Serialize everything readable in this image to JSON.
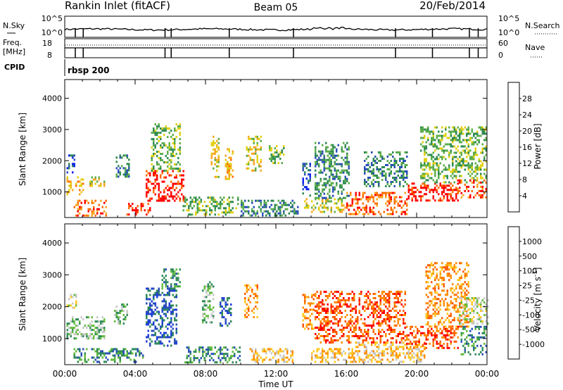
{
  "header": {
    "station": "Rankin Inlet (fitACF)",
    "beam": "Beam 05",
    "date": "20/Feb/2014"
  },
  "noise_panel": {
    "left_label": "N.Sky",
    "right_label": "N.Search",
    "left_ticks": [
      "10^5",
      "10^0"
    ],
    "right_ticks": [
      "10^5",
      "10^0"
    ]
  },
  "freq_panel": {
    "left_label_line1": "Freq.",
    "left_label_line2": "[MHz]",
    "right_label": "Nave",
    "left_ticks": [
      "18",
      "8"
    ],
    "right_ticks": [
      "60",
      "0"
    ]
  },
  "cpid": {
    "label": "CPID",
    "value": "rbsp 200"
  },
  "colors": {
    "frame": "#000000",
    "power_scale": [
      "#0a1ef0",
      "#2a4fb8",
      "#2e8a50",
      "#5cae4a",
      "#e2cf10",
      "#f7a51e",
      "#ff6a00",
      "#ff0000"
    ],
    "velocity_scale": [
      "#ff0000",
      "#ff5a00",
      "#ff8c00",
      "#ffc81e",
      "#c8c8c8",
      "#62bb3c",
      "#2e8b57",
      "#2a4fb8",
      "#1e3cdc"
    ]
  },
  "chart_data": [
    {
      "type": "heatmap",
      "quantity": "Power",
      "colorbar_label": "Power [dB]",
      "colorbar_ticks": [
        "4",
        "8",
        "12",
        "16",
        "20",
        "24",
        "28"
      ],
      "colorbar_range": [
        0,
        32
      ],
      "ylabel": "Slant Range [km]",
      "y_ticks": [
        1000,
        2000,
        3000,
        4000
      ],
      "ylim": [
        180,
        4600
      ],
      "xlim_hours": [
        0,
        24
      ],
      "echo_regions": [
        {
          "t0": 0.1,
          "t1": 1.1,
          "r0": 900,
          "r1": 1500,
          "level": 5
        },
        {
          "t0": 0.1,
          "t1": 0.6,
          "r0": 1600,
          "r1": 2200,
          "level": 1
        },
        {
          "t0": 0.5,
          "t1": 2.4,
          "r0": 250,
          "r1": 750,
          "level": 6
        },
        {
          "t0": 1.2,
          "t1": 2.3,
          "r0": 1200,
          "r1": 1500,
          "level": 4
        },
        {
          "t0": 2.9,
          "t1": 3.7,
          "r0": 1500,
          "r1": 2200,
          "level": 2
        },
        {
          "t0": 3.5,
          "t1": 4.9,
          "r0": 250,
          "r1": 650,
          "level": 7
        },
        {
          "t0": 4.6,
          "t1": 6.8,
          "r0": 700,
          "r1": 1700,
          "level": 7
        },
        {
          "t0": 4.9,
          "t1": 6.6,
          "r0": 1700,
          "r1": 3200,
          "level": 3
        },
        {
          "t0": 6.7,
          "t1": 9.9,
          "r0": 300,
          "r1": 850,
          "level": 3
        },
        {
          "t0": 8.3,
          "t1": 8.8,
          "r0": 1500,
          "r1": 2800,
          "level": 4
        },
        {
          "t0": 9.1,
          "t1": 9.6,
          "r0": 1400,
          "r1": 2400,
          "level": 5
        },
        {
          "t0": 10.3,
          "t1": 11.2,
          "r0": 1700,
          "r1": 2800,
          "level": 4
        },
        {
          "t0": 10.0,
          "t1": 13.3,
          "r0": 250,
          "r1": 750,
          "level": 2
        },
        {
          "t0": 11.6,
          "t1": 12.4,
          "r0": 1900,
          "r1": 2500,
          "level": 3
        },
        {
          "t0": 13.5,
          "t1": 14.0,
          "r0": 900,
          "r1": 2000,
          "level": 1
        },
        {
          "t0": 13.6,
          "t1": 16.0,
          "r0": 350,
          "r1": 800,
          "level": 4
        },
        {
          "t0": 14.2,
          "t1": 16.2,
          "r0": 800,
          "r1": 2600,
          "level": 2
        },
        {
          "t0": 16.0,
          "t1": 19.5,
          "r0": 300,
          "r1": 1000,
          "level": 6
        },
        {
          "t0": 17.0,
          "t1": 19.5,
          "r0": 1200,
          "r1": 2300,
          "level": 2
        },
        {
          "t0": 19.5,
          "t1": 22.5,
          "r0": 700,
          "r1": 1300,
          "level": 7
        },
        {
          "t0": 20.2,
          "t1": 24.0,
          "r0": 1300,
          "r1": 3100,
          "level": 3
        },
        {
          "t0": 22.3,
          "t1": 24.0,
          "r0": 800,
          "r1": 1400,
          "level": 6
        }
      ]
    },
    {
      "type": "heatmap",
      "quantity": "Velocity",
      "colorbar_label": "Velocity [m s^-1]",
      "colorbar_ticks": [
        "1000",
        "500",
        "100",
        "25",
        "-25",
        "-100",
        "-500",
        "-1000"
      ],
      "ylabel": "Slant Range [km]",
      "y_ticks": [
        1000,
        2000,
        3000,
        4000
      ],
      "ylim": [
        180,
        4600
      ],
      "xlim_hours": [
        0,
        24
      ],
      "x_ticks": [
        "00:00",
        "04:00",
        "08:00",
        "12:00",
        "16:00",
        "20:00",
        "00:00"
      ],
      "xlabel": "Time UT",
      "echo_regions": [
        {
          "t0": 0.1,
          "t1": 0.7,
          "r0": 2000,
          "r1": 2400,
          "level": 4
        },
        {
          "t0": 0.1,
          "t1": 2.3,
          "r0": 1000,
          "r1": 1700,
          "level": 5
        },
        {
          "t0": 0.5,
          "t1": 4.5,
          "r0": 250,
          "r1": 700,
          "level": 6
        },
        {
          "t0": 2.8,
          "t1": 3.6,
          "r0": 1500,
          "r1": 2100,
          "level": 5
        },
        {
          "t0": 4.6,
          "t1": 6.4,
          "r0": 800,
          "r1": 2600,
          "level": 7
        },
        {
          "t0": 5.5,
          "t1": 6.6,
          "r0": 2600,
          "r1": 3200,
          "level": 6
        },
        {
          "t0": 6.8,
          "t1": 10.0,
          "r0": 250,
          "r1": 750,
          "level": 6
        },
        {
          "t0": 7.8,
          "t1": 8.5,
          "r0": 1500,
          "r1": 2800,
          "level": 5
        },
        {
          "t0": 8.8,
          "t1": 9.5,
          "r0": 1400,
          "r1": 2300,
          "level": 7
        },
        {
          "t0": 10.2,
          "t1": 11.0,
          "r0": 1700,
          "r1": 2700,
          "level": 2
        },
        {
          "t0": 10.5,
          "t1": 13.0,
          "r0": 250,
          "r1": 700,
          "level": 3
        },
        {
          "t0": 13.5,
          "t1": 14.2,
          "r0": 1300,
          "r1": 2400,
          "level": 2
        },
        {
          "t0": 14.0,
          "t1": 16.5,
          "r0": 250,
          "r1": 700,
          "level": 3
        },
        {
          "t0": 14.2,
          "t1": 19.4,
          "r0": 900,
          "r1": 2500,
          "level": 1
        },
        {
          "t0": 16.5,
          "t1": 20.5,
          "r0": 300,
          "r1": 900,
          "level": 3
        },
        {
          "t0": 19.4,
          "t1": 22.4,
          "r0": 700,
          "r1": 1400,
          "level": 1
        },
        {
          "t0": 20.5,
          "t1": 23.0,
          "r0": 1400,
          "r1": 3400,
          "level": 2
        },
        {
          "t0": 22.4,
          "t1": 24.0,
          "r0": 1500,
          "r1": 2300,
          "level": 4
        },
        {
          "t0": 22.5,
          "t1": 24.0,
          "r0": 500,
          "r1": 1400,
          "level": 6
        }
      ]
    }
  ]
}
